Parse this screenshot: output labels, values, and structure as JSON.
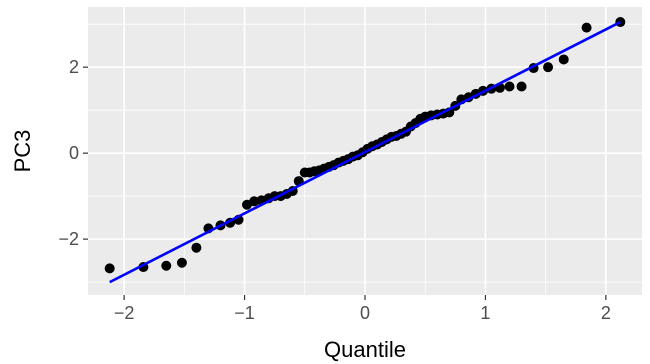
{
  "chart_data": {
    "type": "scatter",
    "title": "",
    "xlabel": "Quantile",
    "ylabel": "PC3",
    "xlim": [
      -2.3,
      2.3
    ],
    "ylim": [
      -3.3,
      3.4
    ],
    "x_ticks": [
      -2,
      -1,
      0,
      1,
      2
    ],
    "x_tick_labels": [
      "−2",
      "−1",
      "0",
      "1",
      "2"
    ],
    "y_ticks": [
      -2,
      0,
      2
    ],
    "y_tick_labels": [
      "−2",
      "0",
      "2"
    ],
    "grid": true,
    "legend": "none",
    "colors": {
      "panel_background": "#ebebeb",
      "grid_major": "#ffffff",
      "points": "#000000",
      "line": "#0000ff"
    },
    "reference_line": {
      "x": [
        -2.12,
        2.12
      ],
      "y": [
        -3.0,
        3.05
      ]
    },
    "points": {
      "x": [
        -2.12,
        -1.84,
        -1.65,
        -1.52,
        -1.4,
        -1.3,
        -1.2,
        -1.12,
        -1.05,
        -0.98,
        -0.92,
        -0.86,
        -0.8,
        -0.75,
        -0.7,
        -0.65,
        -0.6,
        -0.55,
        -0.5,
        -0.46,
        -0.42,
        -0.38,
        -0.34,
        -0.3,
        -0.26,
        -0.22,
        -0.18,
        -0.14,
        -0.1,
        -0.06,
        -0.02,
        0.02,
        0.06,
        0.1,
        0.14,
        0.18,
        0.22,
        0.26,
        0.3,
        0.34,
        0.38,
        0.42,
        0.46,
        0.5,
        0.55,
        0.6,
        0.65,
        0.7,
        0.75,
        0.8,
        0.86,
        0.92,
        0.98,
        1.05,
        1.12,
        1.2,
        1.3,
        1.4,
        1.52,
        1.65,
        1.84,
        2.12
      ],
      "y": [
        -2.68,
        -2.65,
        -2.62,
        -2.55,
        -2.2,
        -1.75,
        -1.68,
        -1.62,
        -1.55,
        -1.2,
        -1.12,
        -1.1,
        -1.05,
        -1.0,
        -1.0,
        -0.95,
        -0.88,
        -0.65,
        -0.45,
        -0.45,
        -0.42,
        -0.4,
        -0.36,
        -0.32,
        -0.28,
        -0.22,
        -0.18,
        -0.14,
        -0.08,
        -0.05,
        0.02,
        0.1,
        0.16,
        0.2,
        0.26,
        0.32,
        0.38,
        0.4,
        0.45,
        0.5,
        0.62,
        0.7,
        0.8,
        0.85,
        0.88,
        0.9,
        0.92,
        0.95,
        1.1,
        1.25,
        1.3,
        1.38,
        1.45,
        1.5,
        1.52,
        1.55,
        1.55,
        1.98,
        2.0,
        2.18,
        2.92,
        3.05
      ]
    }
  }
}
